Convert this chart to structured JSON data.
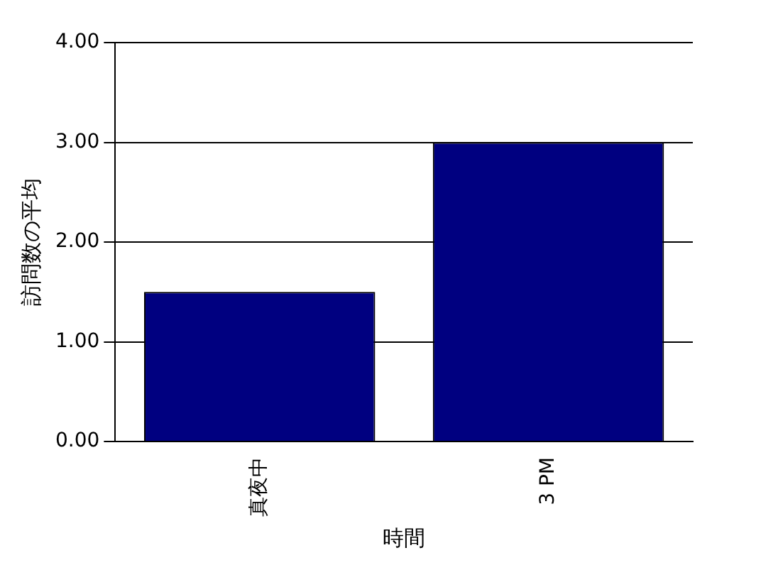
{
  "chart_data": {
    "type": "bar",
    "xlabel": "時間",
    "ylabel": "訪問数の平均",
    "categories": [
      "真夜中",
      "3 PM"
    ],
    "series": [
      {
        "color": "#000080",
        "values": [
          1.5,
          3.0
        ]
      }
    ],
    "ylim": [
      0,
      4
    ],
    "yticks": [
      {
        "value": 0,
        "label": "0.00"
      },
      {
        "value": 1,
        "label": "1.00"
      },
      {
        "value": 2,
        "label": "2.00"
      },
      {
        "value": 3,
        "label": "3.00"
      },
      {
        "value": 4,
        "label": "4.00"
      }
    ],
    "grid": "y",
    "legend": false
  }
}
